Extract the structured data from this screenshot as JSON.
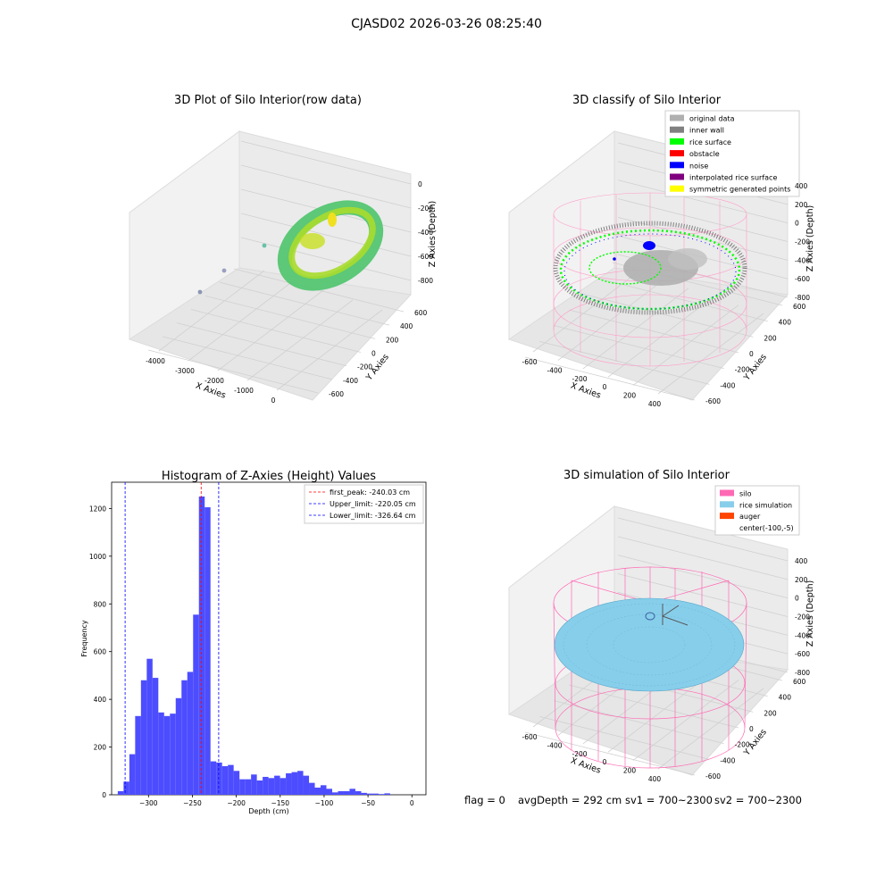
{
  "suptitle": "CJASD02 2026-03-26 08:25:40",
  "colors": {
    "original": "#b0b0b0",
    "inner_wall": "#808080",
    "rice_surface": "#00ff00",
    "obstacle": "#ff0000",
    "noise": "#0000ff",
    "interpolated": "#800080",
    "symmetric": "#ffff00",
    "silo": "#ff69b4",
    "rice_sim": "#87ceeb",
    "auger": "#ff4500",
    "hist_bar": "#4d4dff"
  },
  "plot1": {
    "title": "3D Plot of Silo Interior(row data)",
    "xlabel": "X Axies",
    "ylabel": "Y Axies",
    "zlabel": "Z Axies (Depth)",
    "xticks": [
      "-4000",
      "-3000",
      "-2000",
      "-1000",
      "0"
    ],
    "yticks": [
      "-600",
      "-400",
      "-200",
      "0",
      "200",
      "400",
      "600"
    ],
    "zticks": [
      "0",
      "-200",
      "-400",
      "-600",
      "-800"
    ]
  },
  "plot2": {
    "title": "3D classify of Silo Interior",
    "xlabel": "X Axies",
    "ylabel": "Y Axies",
    "zlabel": "Z Axies (Depth)",
    "xticks": [
      "-600",
      "-400",
      "-200",
      "0",
      "200",
      "400"
    ],
    "yticks": [
      "-600",
      "-400",
      "-200",
      "0",
      "200",
      "400",
      "600"
    ],
    "zticks": [
      "400",
      "200",
      "0",
      "-200",
      "-400",
      "-600",
      "-800"
    ],
    "legend": [
      "original data",
      "inner wall",
      "rice surface",
      "obstacle",
      "noise",
      "interpolated rice surface",
      "symmetric generated points"
    ]
  },
  "plot4": {
    "title": "3D simulation of Silo Interior",
    "xlabel": "X Axies",
    "ylabel": "Y Axies",
    "zlabel": "Z Axies (Depth)",
    "xticks": [
      "-600",
      "-400",
      "-200",
      "0",
      "200",
      "400"
    ],
    "yticks": [
      "-600",
      "-400",
      "-200",
      "0",
      "200",
      "400",
      "600"
    ],
    "zticks": [
      "400",
      "200",
      "0",
      "-200",
      "-400",
      "-600",
      "-800"
    ],
    "legend": [
      "silo",
      "rice simulation",
      "auger",
      "center(-100,-5)"
    ]
  },
  "status_line": {
    "flag": "flag = 0",
    "avg": "avgDepth = 292 cm",
    "sv1": "sv1 = 700~2300",
    "sv2": "sv2 = 700~2300"
  },
  "chart_data": {
    "type": "bar",
    "title": "Histogram of Z-Axies (Height) Values",
    "xlabel": "Depth (cm)",
    "ylabel": "Frequency",
    "xlim": [
      -342,
      16
    ],
    "ylim": [
      0,
      1310
    ],
    "xticks": [
      -300,
      -250,
      -200,
      -150,
      -100,
      -50,
      0
    ],
    "yticks": [
      0,
      200,
      400,
      600,
      800,
      1000,
      1200
    ],
    "bin_start": -335,
    "bin_width": 6.6,
    "values": [
      15,
      55,
      170,
      330,
      480,
      570,
      490,
      345,
      330,
      340,
      405,
      480,
      515,
      755,
      1250,
      1205,
      140,
      135,
      120,
      125,
      100,
      65,
      65,
      85,
      60,
      75,
      70,
      80,
      70,
      90,
      95,
      100,
      80,
      50,
      30,
      40,
      25,
      10,
      15,
      15,
      25,
      15,
      8,
      5,
      5,
      3,
      6
    ],
    "vlines": [
      {
        "label": "first_peak: -240.03 cm",
        "x": -240.03,
        "color": "#ff0000"
      },
      {
        "label": "Upper_limit: -220.05 cm",
        "x": -220.05,
        "color": "#0000ff"
      },
      {
        "label": "Lower_limit: -326.64 cm",
        "x": -326.64,
        "color": "#0000ff"
      }
    ]
  }
}
